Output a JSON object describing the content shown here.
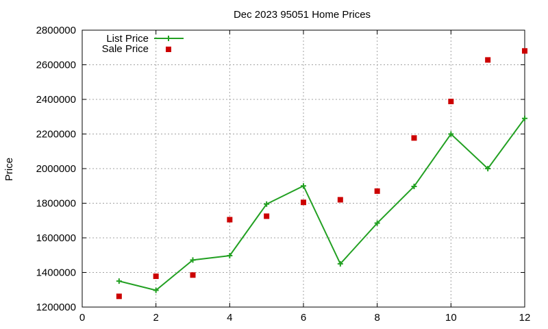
{
  "chart_data": {
    "type": "line",
    "title": "Dec 2023 95051 Home Prices",
    "xlabel": "",
    "ylabel": "Price",
    "xlim": [
      0,
      12
    ],
    "ylim": [
      1200000,
      2800000
    ],
    "xticks": [
      0,
      2,
      4,
      6,
      8,
      10,
      12
    ],
    "yticks": [
      1200000,
      1400000,
      1600000,
      1800000,
      2000000,
      2200000,
      2400000,
      2600000,
      2800000
    ],
    "xtick_labels": [
      "0",
      "2",
      "4",
      "6",
      "8",
      "10",
      "12"
    ],
    "ytick_labels": [
      "1200000",
      "1400000",
      "1600000",
      "1800000",
      "2000000",
      "2200000",
      "2400000",
      "2600000",
      "2800000"
    ],
    "grid": true,
    "legend": "top-left",
    "series": [
      {
        "name": "List Price",
        "style": "line-with-plus-markers",
        "color": "#22a022",
        "x": [
          1,
          2,
          3,
          4,
          5,
          6,
          7,
          8,
          9,
          10,
          11,
          12
        ],
        "y": [
          1350000,
          1297000,
          1472000,
          1497000,
          1795000,
          1900000,
          1450000,
          1685000,
          1897000,
          2200000,
          2000000,
          2290000
        ]
      },
      {
        "name": "Sale Price",
        "style": "square-markers",
        "color": "#cc0000",
        "x": [
          1,
          2,
          3,
          4,
          5,
          6,
          7,
          8,
          9,
          10,
          11,
          12
        ],
        "y": [
          1262000,
          1378000,
          1385000,
          1705000,
          1725000,
          1805000,
          1820000,
          1870000,
          2177000,
          2388000,
          2628000,
          2680000
        ]
      }
    ]
  }
}
